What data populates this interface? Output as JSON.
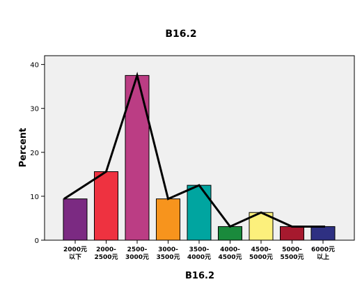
{
  "chart_data": {
    "type": "bar",
    "title": "B16.2",
    "xlabel": "B16.2",
    "ylabel": "Percent",
    "ylim": [
      0,
      42
    ],
    "yticks": [
      0,
      10,
      20,
      30,
      40
    ],
    "grid": false,
    "categories": [
      [
        "2000元",
        "以下"
      ],
      [
        "2000-",
        "2500元"
      ],
      [
        "2500-",
        "3000元"
      ],
      [
        "3000-",
        "3500元"
      ],
      [
        "3500-",
        "4000元"
      ],
      [
        "4000-",
        "4500元"
      ],
      [
        "4500-",
        "5000元"
      ],
      [
        "5000-",
        "5500元"
      ],
      [
        "6000元",
        "以上"
      ]
    ],
    "values": [
      9.4,
      15.6,
      37.5,
      9.4,
      12.5,
      3.1,
      6.3,
      3.1,
      3.1
    ],
    "line_values": [
      9.4,
      15.6,
      37.5,
      9.4,
      12.5,
      3.1,
      6.3,
      3.1,
      3.1
    ],
    "colors": {
      "plot_background": "#f0f0f0",
      "bars": [
        "#7b2a82",
        "#ee3240",
        "#bb3d84",
        "#f7941d",
        "#00a5a0",
        "#1a8a3c",
        "#fcf07c",
        "#a6192e",
        "#2e3082"
      ],
      "line": "#000000"
    }
  }
}
